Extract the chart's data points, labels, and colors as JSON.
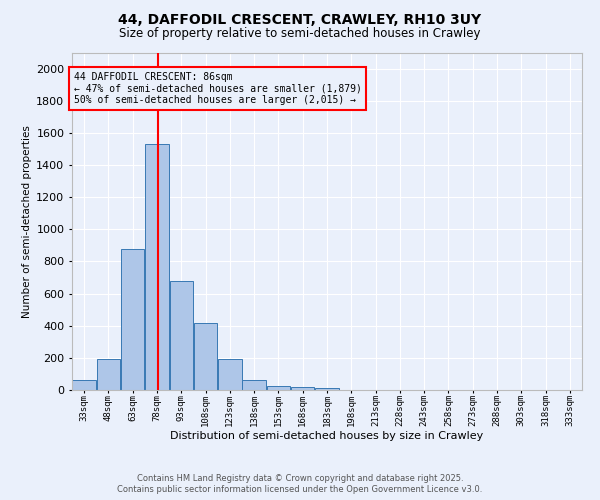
{
  "title1": "44, DAFFODIL CRESCENT, CRAWLEY, RH10 3UY",
  "title2": "Size of property relative to semi-detached houses in Crawley",
  "xlabel": "Distribution of semi-detached houses by size in Crawley",
  "ylabel": "Number of semi-detached properties",
  "bin_labels": [
    "33sqm",
    "48sqm",
    "63sqm",
    "78sqm",
    "93sqm",
    "108sqm",
    "123sqm",
    "138sqm",
    "153sqm",
    "168sqm",
    "183sqm",
    "198sqm",
    "213sqm",
    "228sqm",
    "243sqm",
    "258sqm",
    "273sqm",
    "288sqm",
    "303sqm",
    "318sqm",
    "333sqm"
  ],
  "bin_edges": [
    33,
    48,
    63,
    78,
    93,
    108,
    123,
    138,
    153,
    168,
    183,
    198,
    213,
    228,
    243,
    258,
    273,
    288,
    303,
    318,
    333
  ],
  "bar_heights": [
    65,
    195,
    880,
    1530,
    680,
    415,
    195,
    60,
    25,
    18,
    15,
    0,
    0,
    0,
    0,
    0,
    0,
    0,
    0,
    0
  ],
  "bar_color": "#aec6e8",
  "bar_edge_color": "#3878b4",
  "red_line_x": 86,
  "annotation_title": "44 DAFFODIL CRESCENT: 86sqm",
  "annotation_line1": "← 47% of semi-detached houses are smaller (1,879)",
  "annotation_line2": "50% of semi-detached houses are larger (2,015) →",
  "ylim": [
    0,
    2100
  ],
  "yticks": [
    0,
    200,
    400,
    600,
    800,
    1000,
    1200,
    1400,
    1600,
    1800,
    2000
  ],
  "background_color": "#eaf0fb",
  "footer1": "Contains HM Land Registry data © Crown copyright and database right 2025.",
  "footer2": "Contains public sector information licensed under the Open Government Licence v3.0."
}
